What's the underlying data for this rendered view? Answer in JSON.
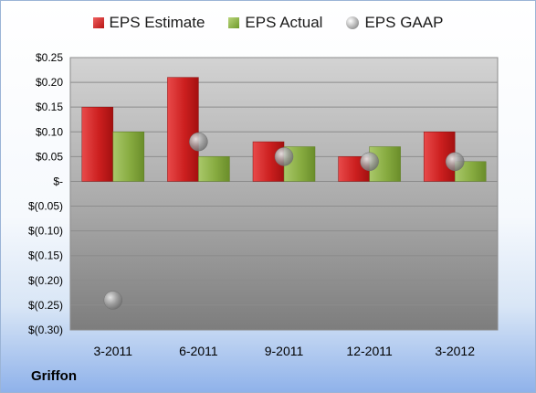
{
  "legend": {
    "estimate": "EPS Estimate",
    "actual": "EPS Actual",
    "gaap": "EPS GAAP"
  },
  "company": "Griffon",
  "colors": {
    "estimate": "#d42a2a",
    "actual": "#8fb44a",
    "gaap": "#a0a0a0"
  },
  "chart_data": {
    "type": "bar",
    "categories": [
      "3-2011",
      "6-2011",
      "9-2011",
      "12-2011",
      "3-2012"
    ],
    "series": [
      {
        "name": "EPS Estimate",
        "values": [
          0.15,
          0.21,
          0.08,
          0.05,
          0.1
        ]
      },
      {
        "name": "EPS Actual",
        "values": [
          0.1,
          0.05,
          0.07,
          0.07,
          0.04
        ]
      },
      {
        "name": "EPS GAAP",
        "values": [
          -0.24,
          0.08,
          0.05,
          0.04,
          0.04
        ]
      }
    ],
    "ylim": [
      -0.3,
      0.25
    ],
    "yticks": [
      0.25,
      0.2,
      0.15,
      0.1,
      0.05,
      0,
      -0.05,
      -0.1,
      -0.15,
      -0.2,
      -0.25,
      -0.3
    ],
    "ytick_labels": [
      "$0.25",
      "$0.20",
      "$0.15",
      "$0.10",
      "$0.05",
      "$-",
      "$(0.05)",
      "$(0.10)",
      "$(0.15)",
      "$(0.20)",
      "$(0.25)",
      "$(0.30)"
    ],
    "grid": true,
    "legend_position": "top"
  }
}
